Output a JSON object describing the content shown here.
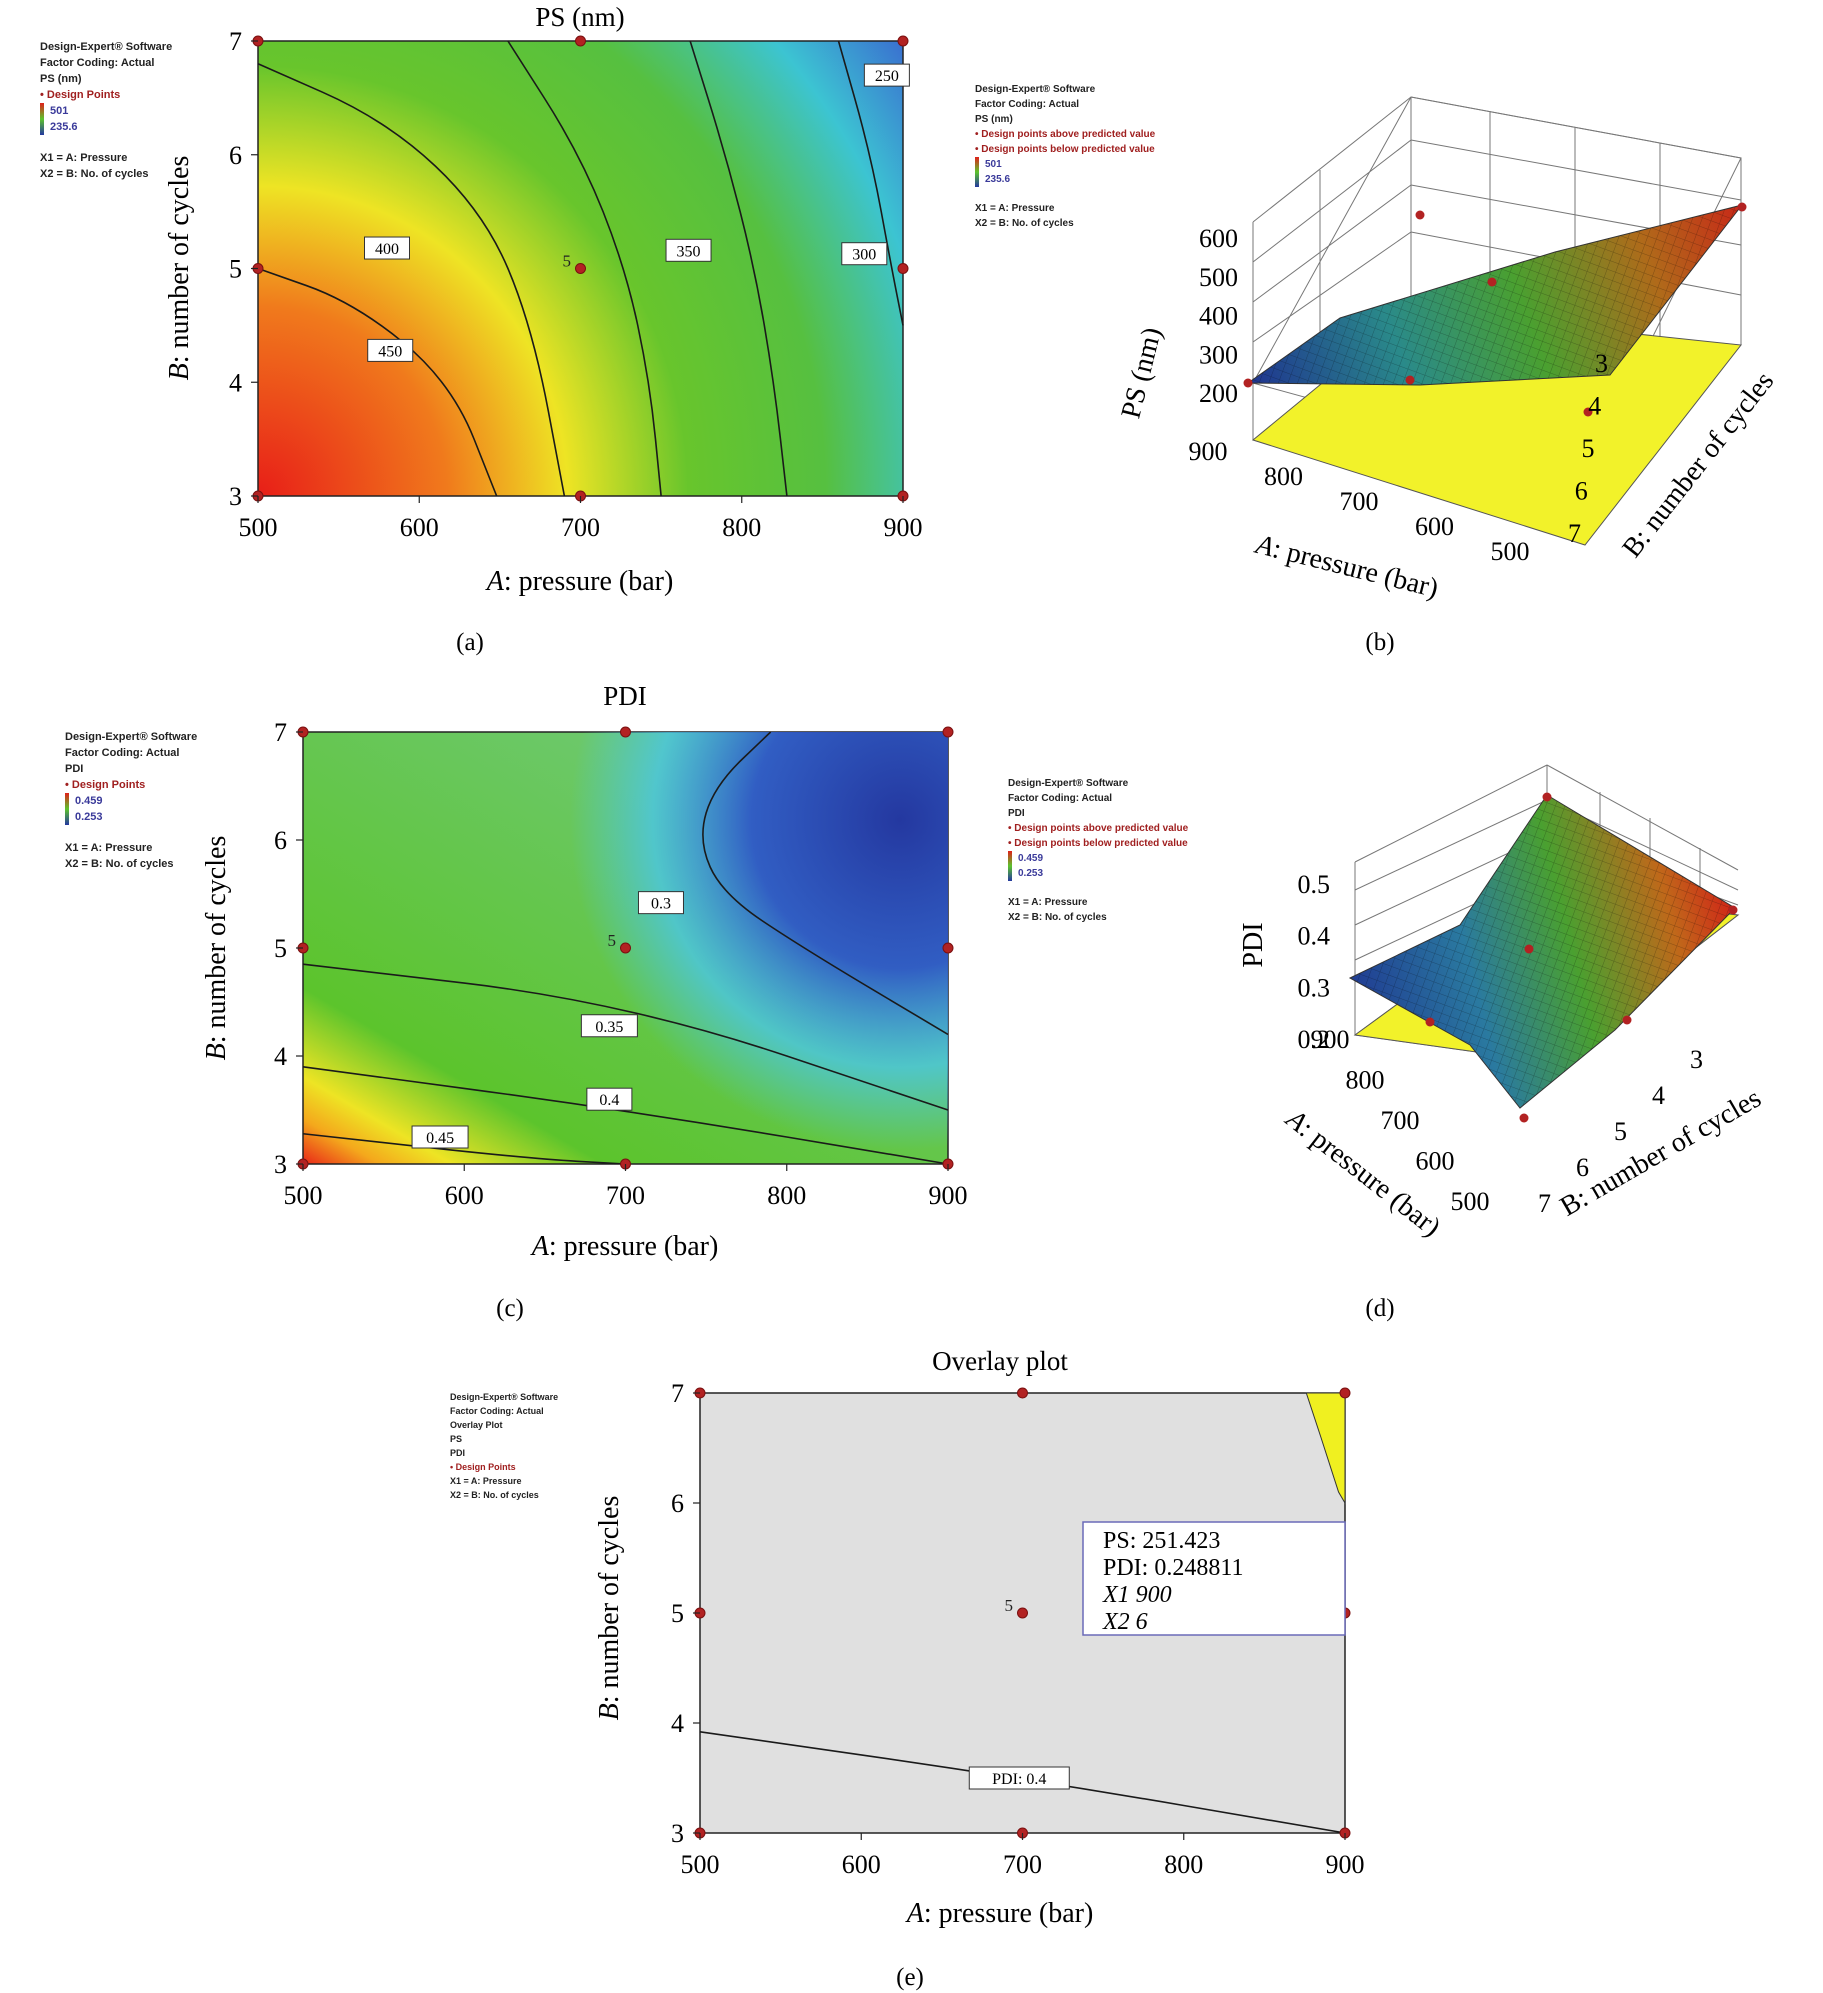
{
  "colors": {
    "surface_low": "#e0201a",
    "surface_mid": "#5cc42c",
    "surface_high": "#2438a0",
    "design_point": "#b22222",
    "overlay_bg": "#e0e0e0",
    "overlay_feasible": "#f0f020",
    "floor": "#f2f22a"
  },
  "panels": {
    "a": {
      "label": "(a)"
    },
    "b": {
      "label": "(b)"
    },
    "c": {
      "label": "(c)"
    },
    "d": {
      "label": "(d)"
    },
    "e": {
      "label": "(e)"
    }
  },
  "chart_data": [
    {
      "id": "a",
      "type": "heatmap",
      "subtype": "contour",
      "title": "PS (nm)",
      "xlabel_italic": "A",
      "xlabel_rest": ": pressure (bar)",
      "ylabel_italic": "B",
      "ylabel_rest": ": number of cycles",
      "xlim": [
        500,
        900
      ],
      "ylim": [
        3,
        7
      ],
      "xticks": [
        "500",
        "600",
        "700",
        "800",
        "900"
      ],
      "yticks": [
        "3",
        "4",
        "5",
        "6",
        "7"
      ],
      "contours": [
        {
          "level": "250",
          "points": [
            [
              860,
              7
            ],
            [
              880,
              6
            ],
            [
              893,
              5
            ],
            [
              900,
              4.5
            ]
          ],
          "label_at": [
            890,
            6.7
          ]
        },
        {
          "level": "300",
          "points": [
            [
              768,
              7
            ],
            [
              790,
              6
            ],
            [
              808,
              5
            ],
            [
              820,
              4
            ],
            [
              828,
              3
            ]
          ],
          "label_at": [
            876,
            5.13
          ]
        },
        {
          "level": "350",
          "points": [
            [
              655,
              7
            ],
            [
              700,
              6
            ],
            [
              728,
              5
            ],
            [
              743,
              4
            ],
            [
              750,
              3
            ]
          ],
          "label_at": [
            767,
            5.16
          ]
        },
        {
          "level": "400",
          "points": [
            [
              500,
              6.8
            ],
            [
              580,
              6.3
            ],
            [
              640,
              5.5
            ],
            [
              670,
              4.5
            ],
            [
              690,
              3
            ]
          ],
          "label_at": [
            580,
            5.18
          ]
        },
        {
          "level": "450",
          "points": [
            [
              500,
              5.0
            ],
            [
              560,
              4.7
            ],
            [
              620,
              4.0
            ],
            [
              648,
              3
            ]
          ],
          "label_at": [
            582,
            4.28
          ]
        }
      ],
      "design_points": [
        [
          500,
          7
        ],
        [
          700,
          7
        ],
        [
          900,
          7
        ],
        [
          500,
          5
        ],
        [
          700,
          5
        ],
        [
          900,
          5
        ],
        [
          500,
          3
        ],
        [
          700,
          3
        ],
        [
          900,
          3
        ]
      ],
      "center_replicates": "5",
      "legend": {
        "lines": [
          "Design-Expert® Software",
          "Factor Coding: Actual",
          "PS (nm)",
          "• Design Points",
          "501",
          "235.6",
          "X1 = A: Pressure",
          "X2 = B: No. of cycles"
        ]
      }
    },
    {
      "id": "b",
      "type": "heatmap",
      "subtype": "3d-surface",
      "zlabel": "PS (nm)",
      "xlabel_italic": "A",
      "xlabel_rest": ": pressure (bar)",
      "ylabel": "B: number of cycles",
      "xticks": [
        "900",
        "800",
        "700",
        "600",
        "500"
      ],
      "yticks": [
        "3",
        "4",
        "5",
        "6",
        "7"
      ],
      "zticks": [
        "200",
        "300",
        "400",
        "500",
        "600"
      ],
      "zlim": [
        200,
        600
      ],
      "legend": {
        "lines": [
          "Design-Expert® Software",
          "Factor Coding: Actual",
          "PS (nm)",
          "• Design points above predicted value",
          "• Design points below predicted value",
          "501",
          "235.6",
          "X1 = A: Pressure",
          "X2 = B: No. of cycles"
        ]
      }
    },
    {
      "id": "c",
      "type": "heatmap",
      "subtype": "contour",
      "title": "PDI",
      "xlabel_italic": "A",
      "xlabel_rest": ": pressure (bar)",
      "ylabel_italic": "B",
      "ylabel_rest": ": number of cycles",
      "xlim": [
        500,
        900
      ],
      "ylim": [
        3,
        7
      ],
      "xticks": [
        "500",
        "600",
        "700",
        "800",
        "900"
      ],
      "yticks": [
        "3",
        "4",
        "5",
        "6",
        "7"
      ],
      "contours": [
        {
          "level": "0.3",
          "points": [
            [
              790,
              7
            ],
            [
              755,
              6.5
            ],
            [
              745,
              6.0
            ],
            [
              760,
              5.5
            ],
            [
              810,
              5.0
            ],
            [
              900,
              4.2
            ]
          ],
          "label_at": [
            722,
            5.42
          ]
        },
        {
          "level": "0.35",
          "points": [
            [
              500,
              4.85
            ],
            [
              700,
              4.5
            ],
            [
              900,
              3.5
            ]
          ],
          "label_at": [
            690,
            4.28
          ]
        },
        {
          "level": "0.4",
          "points": [
            [
              500,
              3.9
            ],
            [
              700,
              3.5
            ],
            [
              900,
              3.0
            ]
          ],
          "label_at": [
            690,
            3.6
          ]
        },
        {
          "level": "0.45",
          "points": [
            [
              500,
              3.28
            ],
            [
              640,
              3.05
            ],
            [
              700,
              3.0
            ]
          ],
          "label_at": [
            585,
            3.25
          ]
        }
      ],
      "design_points": [
        [
          500,
          7
        ],
        [
          700,
          7
        ],
        [
          900,
          7
        ],
        [
          500,
          5
        ],
        [
          700,
          5
        ],
        [
          900,
          5
        ],
        [
          500,
          3
        ],
        [
          700,
          3
        ],
        [
          900,
          3
        ]
      ],
      "center_replicates": "5",
      "legend": {
        "lines": [
          "Design-Expert® Software",
          "Factor Coding: Actual",
          "PDI",
          "• Design Points",
          "0.459",
          "0.253",
          "X1 = A: Pressure",
          "X2 = B: No. of cycles"
        ]
      }
    },
    {
      "id": "d",
      "type": "heatmap",
      "subtype": "3d-surface",
      "zlabel": "PDI",
      "xlabel_italic": "A",
      "xlabel_rest": ": pressure (bar)",
      "ylabel": "B: number of cycles",
      "xticks": [
        "900",
        "800",
        "700",
        "600",
        "500"
      ],
      "yticks": [
        "3",
        "4",
        "5",
        "6",
        "7"
      ],
      "zticks": [
        "0.2",
        "0.3",
        "0.4",
        "0.5"
      ],
      "zlim": [
        0.2,
        0.5
      ],
      "legend": {
        "lines": [
          "Design-Expert® Software",
          "Factor Coding: Actual",
          "PDI",
          "• Design points above predicted value",
          "• Design points below predicted value",
          "0.459",
          "0.253",
          "X1 = A: Pressure",
          "X2 = B: No. of cycles"
        ]
      }
    },
    {
      "id": "e",
      "type": "heatmap",
      "subtype": "overlay",
      "title": "Overlay plot",
      "xlabel_italic": "A",
      "xlabel_rest": ": pressure (bar)",
      "ylabel_italic": "B",
      "ylabel_rest": ": number of cycles",
      "xlim": [
        500,
        900
      ],
      "ylim": [
        3,
        7
      ],
      "xticks": [
        "500",
        "600",
        "700",
        "800",
        "900"
      ],
      "yticks": [
        "3",
        "4",
        "5",
        "6",
        "7"
      ],
      "contours": [
        {
          "level": "PDI: 0.4",
          "points": [
            [
              500,
              3.92
            ],
            [
              700,
              3.5
            ],
            [
              900,
              3.0
            ]
          ],
          "label_at": [
            698,
            3.5
          ]
        }
      ],
      "feasible_region": [
        [
          876,
          7
        ],
        [
          900,
          7
        ],
        [
          900,
          6.0
        ],
        [
          896,
          6.1
        ],
        [
          885,
          6.6
        ]
      ],
      "design_points": [
        [
          500,
          7
        ],
        [
          700,
          7
        ],
        [
          900,
          7
        ],
        [
          500,
          5
        ],
        [
          700,
          5
        ],
        [
          900,
          5
        ],
        [
          500,
          3
        ],
        [
          700,
          3
        ],
        [
          900,
          3
        ]
      ],
      "center_replicates": "5",
      "flag": {
        "lines": [
          "PS: 251.423",
          "PDI: 0.248811",
          "X1 900",
          "X2 6"
        ]
      },
      "legend": {
        "lines": [
          "Design-Expert® Software",
          "Factor Coding: Actual",
          "Overlay Plot",
          "PS",
          "PDI",
          "• Design Points",
          "X1 = A: Pressure",
          "X2 = B: No. of cycles"
        ]
      }
    }
  ]
}
